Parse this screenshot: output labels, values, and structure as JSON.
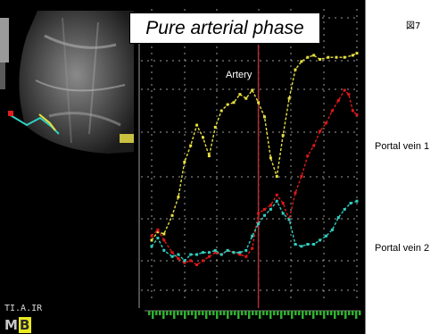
{
  "title": "Pure arterial phase",
  "figure_label": "図7",
  "annotations": {
    "artery": "Artery",
    "portal_vein_1": "Portal vein 1",
    "portal_vein_2": "Portal vein 2"
  },
  "mark_text": "TI.A.IR",
  "logo": {
    "left": "M",
    "right": "B"
  },
  "colors": {
    "artery": "#e8e040",
    "portal_vein_1": "#e01818",
    "portal_vein_2": "#30d0c0",
    "marker": "#b03030",
    "grid": "#cfcfcf",
    "timeline": "#30b030"
  },
  "chart_data": {
    "type": "line",
    "title": "Pure arterial phase",
    "xlabel": "",
    "ylabel": "",
    "xlim": [
      0,
      100
    ],
    "ylim": [
      0,
      100
    ],
    "grid": true,
    "vertical_marker_x": 52,
    "series": [
      {
        "name": "Artery",
        "points": [
          [
            0,
            7
          ],
          [
            3,
            11
          ],
          [
            6,
            10
          ],
          [
            10,
            19
          ],
          [
            13,
            28
          ],
          [
            16,
            45
          ],
          [
            19,
            53
          ],
          [
            22,
            63
          ],
          [
            25,
            57
          ],
          [
            28,
            48
          ],
          [
            31,
            62
          ],
          [
            34,
            70
          ],
          [
            37,
            73
          ],
          [
            40,
            74
          ],
          [
            43,
            78
          ],
          [
            46,
            76
          ],
          [
            49,
            80
          ],
          [
            52,
            74
          ],
          [
            55,
            67
          ],
          [
            58,
            47
          ],
          [
            61,
            38
          ],
          [
            64,
            58
          ],
          [
            67,
            76
          ],
          [
            70,
            90
          ],
          [
            73,
            94
          ],
          [
            76,
            96
          ],
          [
            79,
            97
          ],
          [
            82,
            95
          ],
          [
            86,
            96
          ],
          [
            90,
            96
          ],
          [
            94,
            96
          ],
          [
            98,
            97
          ],
          [
            100,
            98
          ]
        ]
      },
      {
        "name": "Portal vein 1",
        "points": [
          [
            0,
            9
          ],
          [
            3,
            12
          ],
          [
            6,
            7
          ],
          [
            10,
            1
          ],
          [
            13,
            -2
          ],
          [
            16,
            -4
          ],
          [
            19,
            -3
          ],
          [
            22,
            -5
          ],
          [
            25,
            -3
          ],
          [
            28,
            -1
          ],
          [
            31,
            1
          ],
          [
            34,
            0
          ],
          [
            37,
            2
          ],
          [
            40,
            1
          ],
          [
            43,
            0
          ],
          [
            46,
            -1
          ],
          [
            49,
            3
          ],
          [
            52,
            20
          ],
          [
            55,
            22
          ],
          [
            58,
            24
          ],
          [
            61,
            29
          ],
          [
            64,
            25
          ],
          [
            67,
            17
          ],
          [
            70,
            30
          ],
          [
            73,
            38
          ],
          [
            76,
            48
          ],
          [
            79,
            53
          ],
          [
            82,
            60
          ],
          [
            85,
            64
          ],
          [
            88,
            70
          ],
          [
            91,
            75
          ],
          [
            94,
            80
          ],
          [
            96,
            78
          ],
          [
            98,
            70
          ],
          [
            100,
            68
          ]
        ]
      },
      {
        "name": "Portal vein 2",
        "points": [
          [
            0,
            4
          ],
          [
            3,
            8
          ],
          [
            6,
            2
          ],
          [
            10,
            -1
          ],
          [
            13,
            0
          ],
          [
            16,
            -3
          ],
          [
            19,
            0
          ],
          [
            22,
            0
          ],
          [
            25,
            1
          ],
          [
            28,
            1
          ],
          [
            31,
            2
          ],
          [
            34,
            0
          ],
          [
            37,
            2
          ],
          [
            40,
            1
          ],
          [
            43,
            1
          ],
          [
            46,
            2
          ],
          [
            49,
            9
          ],
          [
            52,
            15
          ],
          [
            55,
            19
          ],
          [
            58,
            22
          ],
          [
            61,
            26
          ],
          [
            64,
            20
          ],
          [
            67,
            17
          ],
          [
            70,
            5
          ],
          [
            73,
            4
          ],
          [
            76,
            5
          ],
          [
            79,
            5
          ],
          [
            82,
            7
          ],
          [
            85,
            9
          ],
          [
            88,
            12
          ],
          [
            91,
            18
          ],
          [
            94,
            22
          ],
          [
            97,
            25
          ],
          [
            100,
            26
          ]
        ]
      }
    ]
  }
}
